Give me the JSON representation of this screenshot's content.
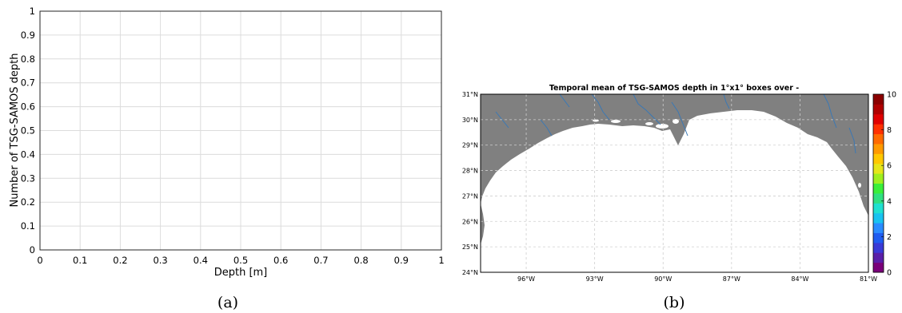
{
  "panels": [
    {
      "caption": "(a)",
      "chart_data": {
        "type": "line",
        "title": "",
        "xlabel": "Depth [m]",
        "ylabel": "Number of TSG-SAMOS depth",
        "xlim": [
          0,
          1
        ],
        "ylim": [
          0,
          1
        ],
        "xticks": [
          "0",
          "0.1",
          "0.2",
          "0.3",
          "0.4",
          "0.5",
          "0.6",
          "0.7",
          "0.8",
          "0.9",
          "1"
        ],
        "yticks": [
          "0",
          "0.1",
          "0.2",
          "0.3",
          "0.4",
          "0.5",
          "0.6",
          "0.7",
          "0.8",
          "0.9",
          "1"
        ],
        "grid": true,
        "series": []
      }
    },
    {
      "caption": "(b)",
      "chart_data": {
        "type": "heatmap",
        "title": "Temporal mean of TSG-SAMOS depth in 1°x1° boxes over -",
        "lon_range": [
          -98,
          -81
        ],
        "lat_range": [
          24,
          31
        ],
        "xticks": [
          "96°W",
          "93°W",
          "90°W",
          "87°W",
          "84°W",
          "81°W"
        ],
        "yticks": [
          "24°N",
          "25°N",
          "26°N",
          "27°N",
          "28°N",
          "29°N",
          "30°N",
          "31°N"
        ],
        "grid": true,
        "land_color": "#808080",
        "river_color": "#3a78b5",
        "colorbar": {
          "range": [
            0,
            10
          ],
          "ticks": [
            "0",
            "2",
            "4",
            "6",
            "8",
            "10"
          ],
          "colors": [
            "#7a007a",
            "#5a1fa8",
            "#3a3ad6",
            "#1f5cf0",
            "#2a8cff",
            "#19c2f0",
            "#20e0d0",
            "#30e080",
            "#3aef3a",
            "#9fef1f",
            "#e6e61a",
            "#ffc800",
            "#ff9a00",
            "#ff6a00",
            "#ff3000",
            "#e00000",
            "#b00000",
            "#8b0000"
          ]
        },
        "values": []
      }
    }
  ]
}
